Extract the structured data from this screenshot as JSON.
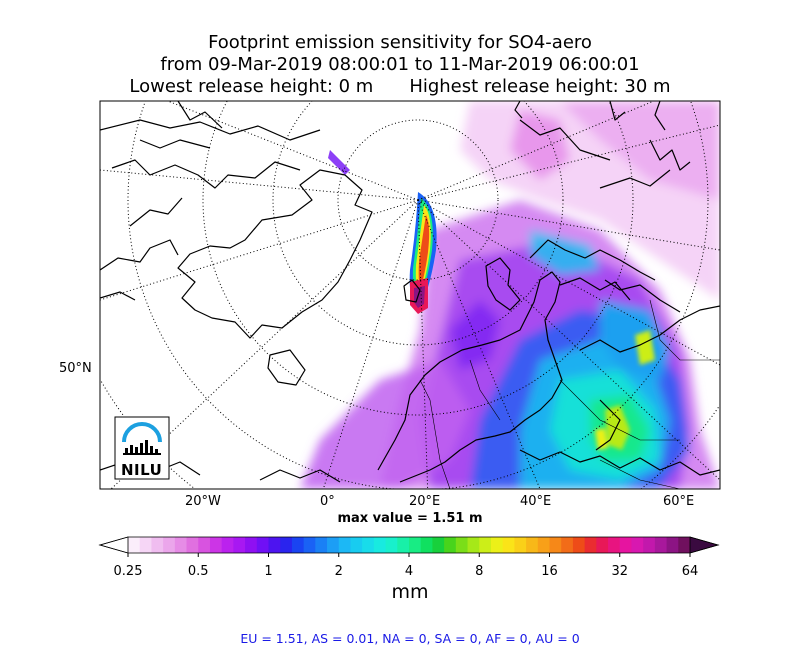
{
  "title": {
    "line1": "Footprint emission sensitivity for SO4-aero",
    "line2": "from 09-Mar-2019 08:00:01 to 11-Mar-2019 06:00:01",
    "line3_left": "Lowest release height: 0 m",
    "line3_right": "Highest release height: 30 m"
  },
  "map": {
    "lat_label": "50°N",
    "lon_labels": [
      "20°W",
      "0°",
      "20°E",
      "40°E",
      "60°E"
    ],
    "max_value": "max value = 1.51 m",
    "logo_text": "NILU",
    "logo_icon": "nilu-logo-icon"
  },
  "colorbar": {
    "ticks": [
      "0.25",
      "0.5",
      "1",
      "2",
      "4",
      "8",
      "16",
      "32",
      "64"
    ],
    "unit": "mm",
    "colors": [
      "#fbeefb",
      "#f6d6f6",
      "#f0bdf0",
      "#eba6eb",
      "#e68ce6",
      "#e070e0",
      "#d853e0",
      "#cc35e6",
      "#bb22ee",
      "#a818f2",
      "#8f10f2",
      "#7010f5",
      "#4d14f0",
      "#2a24ee",
      "#1a44f2",
      "#1a62f5",
      "#1a80f5",
      "#1c9ef5",
      "#1cb8f5",
      "#18ccf0",
      "#18dcea",
      "#18eae0",
      "#18f0cc",
      "#18f0a8",
      "#18ec84",
      "#10e060",
      "#18d03c",
      "#48d41c",
      "#7ade18",
      "#a6e818",
      "#ccee18",
      "#ecf018",
      "#fae418",
      "#fad018",
      "#f8b818",
      "#f8a018",
      "#f68818",
      "#f26c18",
      "#ee4c18",
      "#ea2c30",
      "#e81858",
      "#e81480",
      "#e614a0",
      "#d818b0",
      "#c218ac",
      "#a8189c",
      "#8c1484",
      "#70105e"
    ]
  },
  "footer": "EU = 1.51,  AS = 0.01,  NA = 0,  SA = 0,  AF = 0,  AU = 0"
}
